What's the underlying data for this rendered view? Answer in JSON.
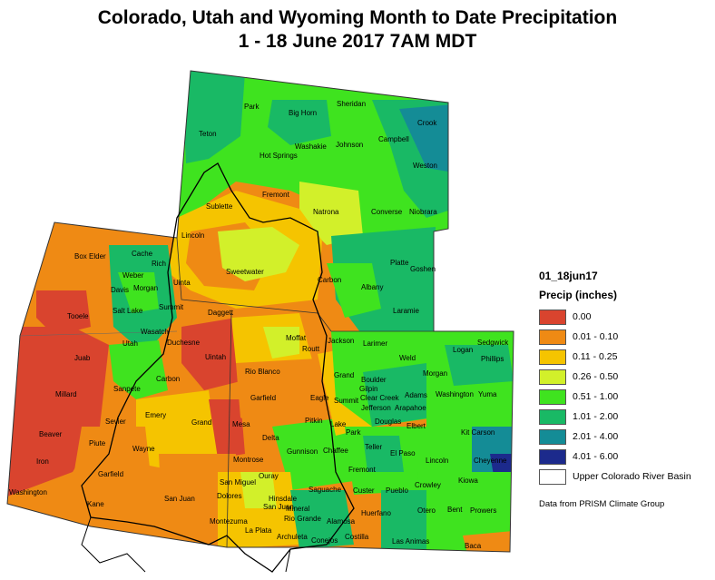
{
  "title": {
    "line1": "Colorado, Utah and Wyoming Month to Date Precipitation",
    "line2": "1 - 18 June 2017 7AM MDT"
  },
  "legend": {
    "layer_name": "01_18jun17",
    "unit_label": "Precip (inches)",
    "items": [
      {
        "label": "0.00",
        "color": "#d9442e"
      },
      {
        "label": "0.01 - 0.10",
        "color": "#ef8a14"
      },
      {
        "label": "0.11 - 0.25",
        "color": "#f5c400"
      },
      {
        "label": "0.26 - 0.50",
        "color": "#d2f02a"
      },
      {
        "label": "0.51 - 1.00",
        "color": "#3fe31f"
      },
      {
        "label": "1.01 - 2.00",
        "color": "#19b965"
      },
      {
        "label": "2.01 - 4.00",
        "color": "#148c96"
      },
      {
        "label": "4.01 - 6.00",
        "color": "#1c2a8c"
      },
      {
        "label": "Upper Colorado River Basin",
        "color": "#ffffff"
      }
    ],
    "credit": "Data from PRISM Climate Group"
  },
  "counties": {
    "wyoming": [
      "Park",
      "Big Horn",
      "Sheridan",
      "Crook",
      "Teton",
      "Washakie",
      "Johnson",
      "Campbell",
      "Hot Springs",
      "Weston",
      "Fremont",
      "Natrona",
      "Converse",
      "Niobrara",
      "Sublette",
      "Lincoln",
      "Sweetwater",
      "Carbon",
      "Albany",
      "Platte",
      "Goshen",
      "Uinta",
      "Laramie"
    ],
    "utah": [
      "Box Elder",
      "Cache",
      "Rich",
      "Weber",
      "Davis",
      "Morgan",
      "Tooele",
      "Salt Lake",
      "Summit",
      "Daggett",
      "Wasatch",
      "Utah",
      "Duchesne",
      "Uintah",
      "Juab",
      "Carbon",
      "Sanpete",
      "Millard",
      "Emery",
      "Sevier",
      "Grand",
      "Beaver",
      "Piute",
      "Wayne",
      "Iron",
      "Garfield",
      "Washington",
      "Kane",
      "San Juan"
    ],
    "colorado": [
      "Moffat",
      "Jackson",
      "Larimer",
      "Logan",
      "Sedgwick",
      "Phillips",
      "Routt",
      "Weld",
      "Morgan",
      "Rio Blanco",
      "Grand",
      "Boulder",
      "Gilpin",
      "Adams",
      "Washington",
      "Yuma",
      "Garfield",
      "Eagle",
      "Summit",
      "Clear Creek",
      "Jefferson",
      "Arapahoe",
      "Mesa",
      "Pitkin",
      "Lake",
      "Park",
      "Douglas",
      "Elbert",
      "Kit Carson",
      "Delta",
      "Gunnison",
      "Chaffee",
      "Teller",
      "El Paso",
      "Lincoln",
      "Cheyenne",
      "Montrose",
      "Ouray",
      "Fremont",
      "Crowley",
      "Kiowa",
      "San Miguel",
      "Custer",
      "Pueblo",
      "Bent",
      "Prowers",
      "Dolores",
      "Hinsdale",
      "Saguache",
      "San Juan",
      "Mineral",
      "Otero",
      "Montezuma",
      "Rio Grande",
      "Alamosa",
      "Huerfano",
      "La Plata",
      "Archuleta",
      "Conejos",
      "Costilla",
      "Las Animas",
      "Baca"
    ]
  }
}
